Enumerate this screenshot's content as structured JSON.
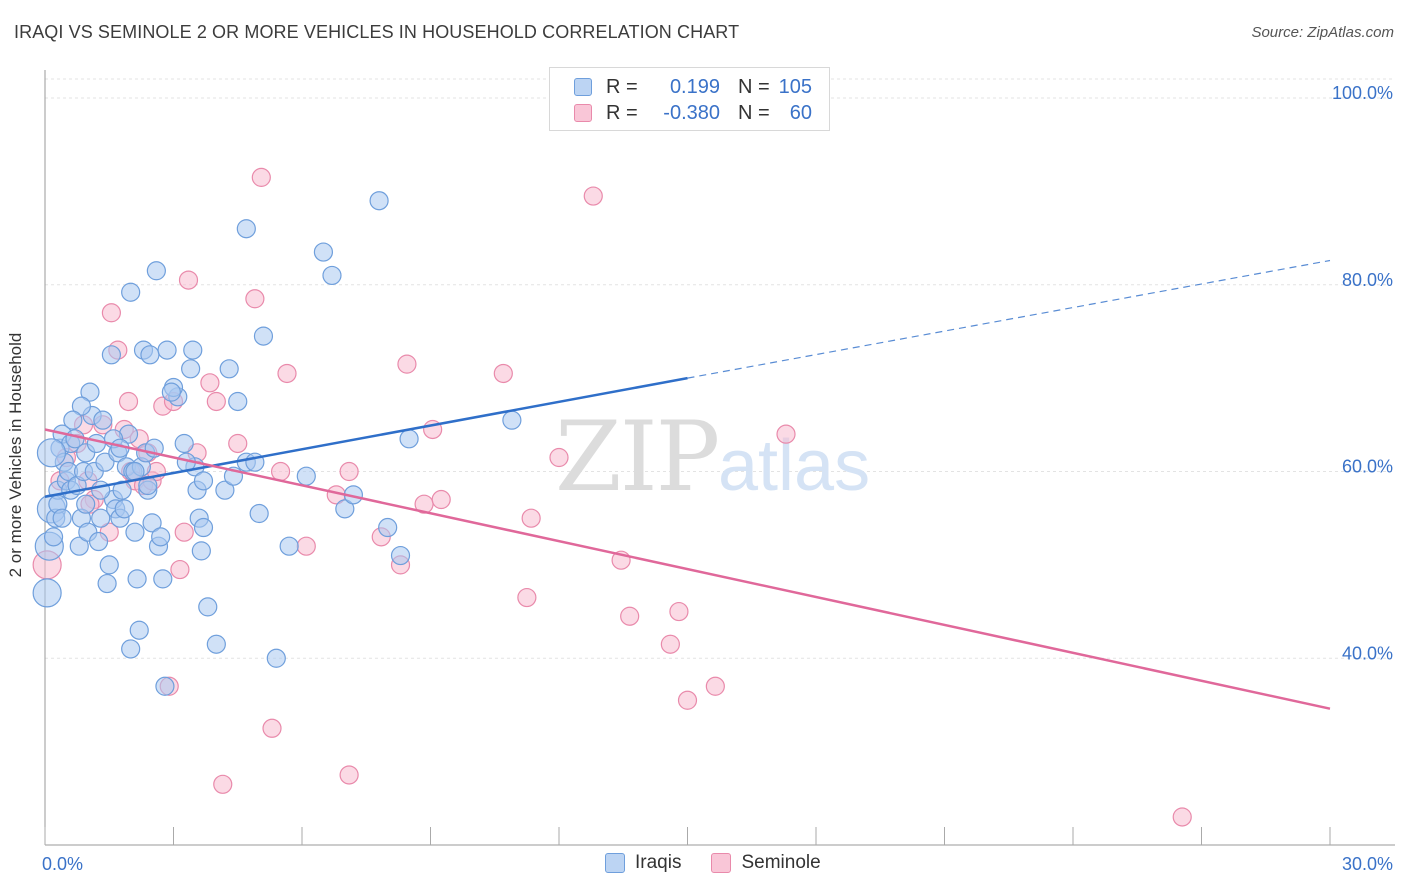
{
  "header": {
    "title": "IRAQI VS SEMINOLE 2 OR MORE VEHICLES IN HOUSEHOLD CORRELATION CHART",
    "source": "Source: ZipAtlas.com"
  },
  "legend_box": {
    "rows": [
      {
        "r_label": "R =",
        "r_value": "0.199",
        "n_label": "N =",
        "n_value": "105"
      },
      {
        "r_label": "R =",
        "r_value": "-0.380",
        "n_label": "N =",
        "n_value": "60"
      }
    ]
  },
  "watermark": {
    "zip": "ZIP",
    "atlas": "atlas"
  },
  "colors": {
    "iraqis_fill": "#aac8f0",
    "iraqis_stroke": "#6f9fdc",
    "iraqis_line": "#2f6fc9",
    "seminole_fill": "#f7bcd0",
    "seminole_stroke": "#e98aab",
    "seminole_line": "#e0689a",
    "axis_text": "#3a72c8",
    "grid": "#e3e3e3"
  },
  "chart_data": {
    "type": "scatter",
    "title": "IRAQI VS SEMINOLE 2 OR MORE VEHICLES IN HOUSEHOLD CORRELATION CHART",
    "xlabel": "",
    "ylabel": "2 or more Vehicles in Household",
    "xlim": [
      0,
      30
    ],
    "ylim": [
      20,
      103
    ],
    "x_tick_labels": [
      "0.0%",
      "30.0%"
    ],
    "y_ticks": [
      40,
      60,
      80,
      100
    ],
    "y_tick_labels": [
      "40.0%",
      "60.0%",
      "80.0%",
      "100.0%"
    ],
    "grid": true,
    "legend_position": "bottom-center",
    "series": [
      {
        "name": "Iraqis",
        "r": 0.199,
        "n": 105,
        "trend": {
          "x0": 0,
          "y0": 57.3,
          "x1": 15,
          "y1": 70,
          "dashed_to_x": 30,
          "dashed_to_y": 82.6
        },
        "points": [
          [
            0.05,
            47
          ],
          [
            0.1,
            52
          ],
          [
            0.15,
            56
          ],
          [
            0.2,
            53
          ],
          [
            0.25,
            55
          ],
          [
            0.3,
            58
          ],
          [
            0.3,
            56.5
          ],
          [
            0.35,
            62.5
          ],
          [
            0.4,
            64
          ],
          [
            0.45,
            61
          ],
          [
            0.5,
            59
          ],
          [
            0.55,
            60
          ],
          [
            0.6,
            63
          ],
          [
            0.6,
            58
          ],
          [
            0.7,
            63.5
          ],
          [
            0.75,
            58.5
          ],
          [
            0.8,
            52
          ],
          [
            0.85,
            55
          ],
          [
            0.9,
            60
          ],
          [
            0.95,
            62
          ],
          [
            1.0,
            53.5
          ],
          [
            1.05,
            68.5
          ],
          [
            1.1,
            66
          ],
          [
            1.15,
            60
          ],
          [
            1.2,
            63
          ],
          [
            1.25,
            52.5
          ],
          [
            1.3,
            55
          ],
          [
            1.35,
            65.5
          ],
          [
            1.4,
            61
          ],
          [
            1.45,
            48
          ],
          [
            1.5,
            50
          ],
          [
            1.55,
            72.5
          ],
          [
            1.6,
            57
          ],
          [
            1.65,
            56
          ],
          [
            1.7,
            62
          ],
          [
            1.75,
            55
          ],
          [
            1.8,
            58
          ],
          [
            1.85,
            56
          ],
          [
            1.9,
            60.5
          ],
          [
            1.95,
            64
          ],
          [
            2.0,
            79.2
          ],
          [
            2.0,
            41
          ],
          [
            2.05,
            60
          ],
          [
            2.1,
            53.5
          ],
          [
            2.15,
            48.5
          ],
          [
            2.2,
            43
          ],
          [
            2.25,
            60.5
          ],
          [
            2.3,
            73
          ],
          [
            2.35,
            62
          ],
          [
            2.4,
            58
          ],
          [
            2.45,
            72.5
          ],
          [
            2.5,
            54.5
          ],
          [
            2.55,
            62.5
          ],
          [
            2.6,
            81.5
          ],
          [
            2.65,
            52
          ],
          [
            2.7,
            53
          ],
          [
            2.75,
            48.5
          ],
          [
            2.8,
            37
          ],
          [
            2.85,
            73
          ],
          [
            3.1,
            68
          ],
          [
            3.25,
            63
          ],
          [
            3.45,
            73
          ],
          [
            3.4,
            71
          ],
          [
            3.5,
            60.5
          ],
          [
            3.55,
            58
          ],
          [
            3.6,
            55
          ],
          [
            3.65,
            51.5
          ],
          [
            3.7,
            54
          ],
          [
            3.8,
            45.5
          ],
          [
            4.0,
            41.5
          ],
          [
            4.2,
            58
          ],
          [
            4.3,
            71
          ],
          [
            4.4,
            59.5
          ],
          [
            4.7,
            61
          ],
          [
            4.7,
            86
          ],
          [
            5.1,
            74.5
          ],
          [
            5.0,
            55.5
          ],
          [
            5.4,
            40
          ],
          [
            5.7,
            52
          ],
          [
            6.1,
            59.5
          ],
          [
            6.5,
            83.5
          ],
          [
            6.7,
            81
          ],
          [
            7.0,
            56
          ],
          [
            7.2,
            57.5
          ],
          [
            7.8,
            89
          ],
          [
            8.0,
            54
          ],
          [
            8.3,
            51
          ],
          [
            8.5,
            63.5
          ],
          [
            10.9,
            65.5
          ],
          [
            4.5,
            67.5
          ],
          [
            3.0,
            69
          ],
          [
            1.3,
            58
          ],
          [
            0.85,
            67
          ],
          [
            2.95,
            68.5
          ],
          [
            3.7,
            59
          ],
          [
            2.1,
            60
          ],
          [
            0.65,
            65.5
          ],
          [
            1.6,
            63.5
          ],
          [
            0.95,
            56.5
          ],
          [
            4.9,
            61
          ],
          [
            0.4,
            55
          ],
          [
            2.4,
            58.5
          ],
          [
            3.3,
            61
          ],
          [
            0.15,
            62
          ],
          [
            1.75,
            62.5
          ]
        ]
      },
      {
        "name": "Seminole",
        "r": -0.38,
        "n": 60,
        "trend": {
          "x0": 0,
          "y0": 64.5,
          "x1": 30,
          "y1": 34.6
        },
        "points": [
          [
            0.05,
            50
          ],
          [
            0.35,
            59
          ],
          [
            0.5,
            61.5
          ],
          [
            0.75,
            63
          ],
          [
            0.9,
            65
          ],
          [
            1.0,
            59
          ],
          [
            1.15,
            57
          ],
          [
            1.35,
            65
          ],
          [
            1.5,
            53.5
          ],
          [
            1.55,
            77
          ],
          [
            1.7,
            73
          ],
          [
            1.85,
            64.5
          ],
          [
            1.95,
            67.5
          ],
          [
            2.0,
            60
          ],
          [
            2.1,
            59
          ],
          [
            2.2,
            63.5
          ],
          [
            2.3,
            58.5
          ],
          [
            2.4,
            62
          ],
          [
            2.5,
            59
          ],
          [
            2.6,
            60
          ],
          [
            2.75,
            67
          ],
          [
            2.9,
            37
          ],
          [
            3.0,
            67.5
          ],
          [
            3.15,
            49.5
          ],
          [
            3.25,
            53.5
          ],
          [
            3.35,
            80.5
          ],
          [
            3.55,
            62
          ],
          [
            3.85,
            69.5
          ],
          [
            4.0,
            67.5
          ],
          [
            4.15,
            26.5
          ],
          [
            4.5,
            63
          ],
          [
            4.9,
            78.5
          ],
          [
            5.05,
            91.5
          ],
          [
            5.3,
            32.5
          ],
          [
            5.5,
            60
          ],
          [
            5.65,
            70.5
          ],
          [
            6.1,
            52
          ],
          [
            6.8,
            57.5
          ],
          [
            7.1,
            27.5
          ],
          [
            7.1,
            60
          ],
          [
            7.85,
            53
          ],
          [
            8.3,
            50
          ],
          [
            8.45,
            71.5
          ],
          [
            8.85,
            56.5
          ],
          [
            9.05,
            64.5
          ],
          [
            9.25,
            57
          ],
          [
            10.7,
            70.5
          ],
          [
            11.25,
            46.5
          ],
          [
            11.35,
            55
          ],
          [
            12.0,
            61.5
          ],
          [
            12.8,
            89.5
          ],
          [
            13.45,
            50.5
          ],
          [
            13.65,
            44.5
          ],
          [
            14.6,
            41.5
          ],
          [
            14.8,
            45
          ],
          [
            15.0,
            35.5
          ],
          [
            15.65,
            37
          ],
          [
            17.3,
            64
          ],
          [
            26.55,
            23
          ],
          [
            1.05,
            56.5
          ]
        ]
      }
    ]
  }
}
